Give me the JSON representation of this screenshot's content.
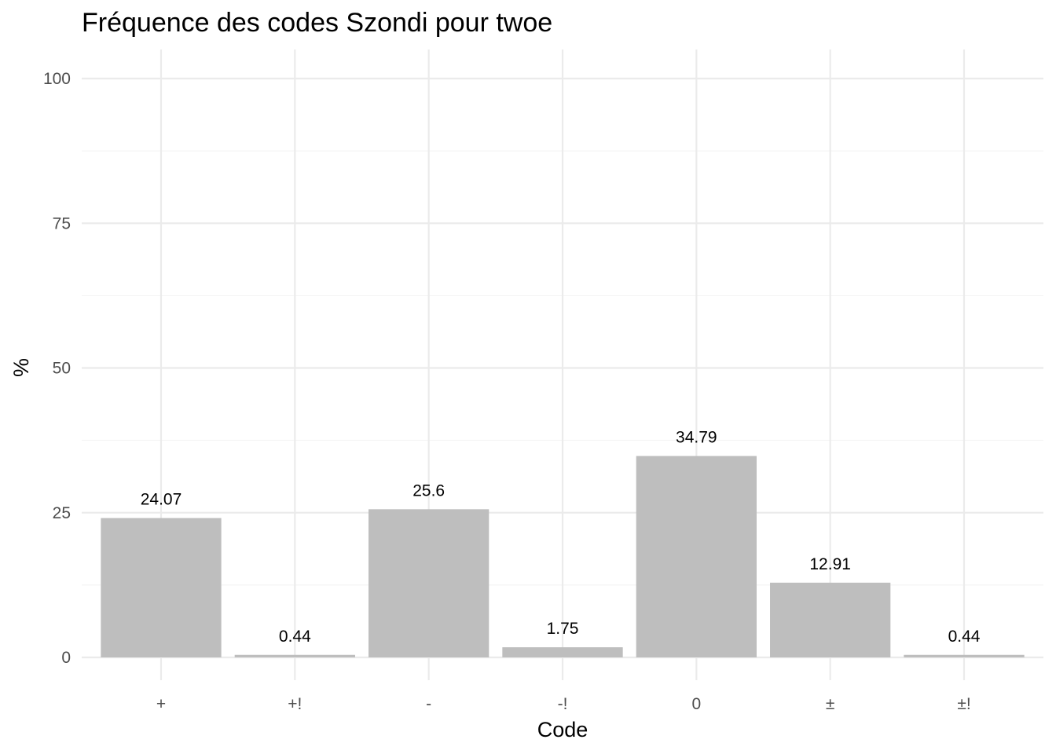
{
  "chart_data": {
    "type": "bar",
    "title": "Fréquence des codes Szondi pour twoe",
    "xlabel": "Code",
    "ylabel": "%",
    "categories": [
      "+",
      "+!",
      "-",
      "-!",
      "0",
      "±",
      "±!"
    ],
    "values": [
      24.07,
      0.44,
      25.6,
      1.75,
      34.79,
      12.91,
      0.44
    ],
    "data_labels": [
      "24.07",
      "0.44",
      "25.6",
      "1.75",
      "34.79",
      "12.91",
      "0.44"
    ],
    "ylim": [
      0,
      100
    ],
    "yticks": [
      0,
      25,
      50,
      75,
      100
    ],
    "ytick_labels": [
      "0",
      "25",
      "50",
      "75",
      "100"
    ],
    "grid": true,
    "bar_color": "#bebebe",
    "background": "#ffffff"
  }
}
